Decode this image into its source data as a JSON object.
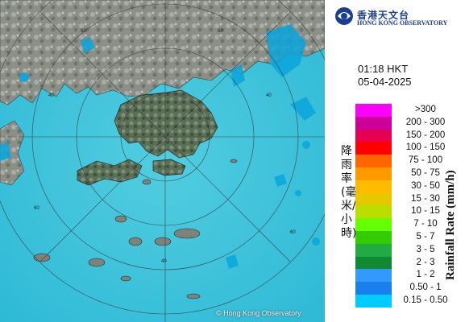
{
  "map": {
    "copyright": "© Hong Kong Observatory",
    "range_ring_labels": [
      "60",
      "60",
      "40",
      "40",
      "60",
      "40",
      "60"
    ],
    "colors": {
      "sea": "#3cc4dc",
      "land": "#8a8f88",
      "rain_light": "#00aadd"
    }
  },
  "header": {
    "logo_zh": "香港天文台",
    "logo_en": "HONG KONG OBSERVATORY",
    "logo_icon": "hko-logo-icon",
    "time": "01:18 HKT",
    "date": "05-04-2025"
  },
  "legend": {
    "title_en": "Rainfall Rate (mm/h)",
    "title_zh": "降雨率(毫米/小時)",
    "items": [
      {
        "label": ">300",
        "color": "#ff00ff"
      },
      {
        "label": "200 - 300",
        "color": "#cc0099"
      },
      {
        "label": "150 - 200",
        "color": "#e60050"
      },
      {
        "label": "100 - 150",
        "color": "#ff0000"
      },
      {
        "label": "75 - 100",
        "color": "#ff6600"
      },
      {
        "label": "50 - 75",
        "color": "#ff9900"
      },
      {
        "label": "30 - 50",
        "color": "#ffbb00"
      },
      {
        "label": "15 - 30",
        "color": "#e6c800"
      },
      {
        "label": "10 - 15",
        "color": "#bbdd00"
      },
      {
        "label": "7 - 10",
        "color": "#66ff00"
      },
      {
        "label": "5 - 7",
        "color": "#33cc00"
      },
      {
        "label": "3 - 5",
        "color": "#22aa44"
      },
      {
        "label": "2 - 3",
        "color": "#118833"
      },
      {
        "label": "1 - 2",
        "color": "#3399ff"
      },
      {
        "label": "0.50 - 1",
        "color": "#1a7fee"
      },
      {
        "label": "0.15 - 0.50",
        "color": "#00ccff"
      }
    ]
  }
}
